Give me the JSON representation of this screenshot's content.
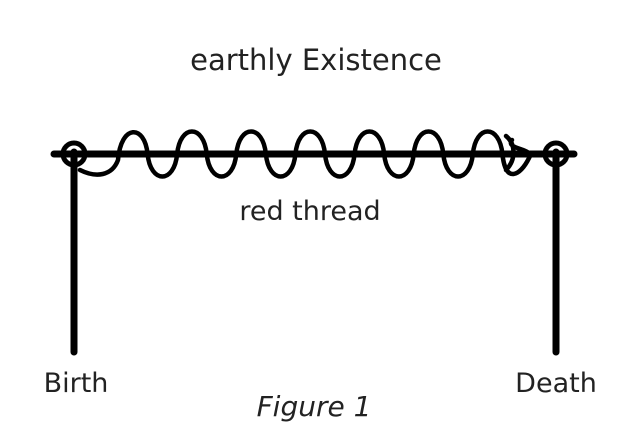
{
  "diagram": {
    "title": "earthly Existence",
    "thread_label": "red thread",
    "start_label": "Birth",
    "end_label": "Death",
    "caption": "Figure 1",
    "wave_cycles": 7
  }
}
